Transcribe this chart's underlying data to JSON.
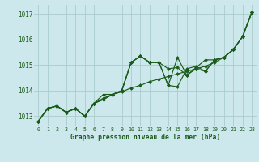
{
  "title": "Graphe pression niveau de la mer (hPa)",
  "background_color": "#cce8ec",
  "grid_color": "#aacccc",
  "line_color": "#1a5c1a",
  "xlim": [
    -0.5,
    23.5
  ],
  "ylim": [
    1012.6,
    1017.35
  ],
  "yticks": [
    1013,
    1014,
    1015,
    1016,
    1017
  ],
  "xticks": [
    0,
    1,
    2,
    3,
    4,
    5,
    6,
    7,
    8,
    9,
    10,
    11,
    12,
    13,
    14,
    15,
    16,
    17,
    18,
    19,
    20,
    21,
    22,
    23
  ],
  "series": [
    [
      1012.8,
      1013.3,
      1013.4,
      1013.15,
      1013.3,
      1013.0,
      1013.5,
      1013.7,
      1013.85,
      1013.95,
      1014.1,
      1014.2,
      1014.35,
      1014.45,
      1014.55,
      1014.65,
      1014.75,
      1014.85,
      1014.95,
      1015.1,
      1015.3,
      1015.6,
      1016.1,
      1017.05
    ],
    [
      1012.8,
      1013.3,
      1013.4,
      1013.15,
      1013.3,
      1013.0,
      1013.5,
      1013.85,
      1013.85,
      1014.0,
      1015.1,
      1015.35,
      1015.1,
      1015.1,
      1014.85,
      1014.9,
      1014.6,
      1014.9,
      1015.2,
      1015.2,
      1015.3,
      1015.6,
      1016.1,
      1017.05
    ],
    [
      1012.8,
      1013.3,
      1013.4,
      1013.15,
      1013.3,
      1013.0,
      1013.5,
      1013.65,
      1013.85,
      1014.0,
      1015.1,
      1015.35,
      1015.1,
      1015.1,
      1014.2,
      1015.3,
      1014.6,
      1014.85,
      1014.75,
      1015.2,
      1015.3,
      1015.6,
      1016.1,
      1017.05
    ],
    [
      1012.8,
      1013.3,
      1013.4,
      1013.15,
      1013.3,
      1013.0,
      1013.5,
      1013.65,
      1013.85,
      1014.0,
      1015.1,
      1015.35,
      1015.1,
      1015.1,
      1014.2,
      1014.15,
      1014.85,
      1014.95,
      1014.75,
      1015.2,
      1015.3,
      1015.6,
      1016.1,
      1017.05
    ]
  ]
}
